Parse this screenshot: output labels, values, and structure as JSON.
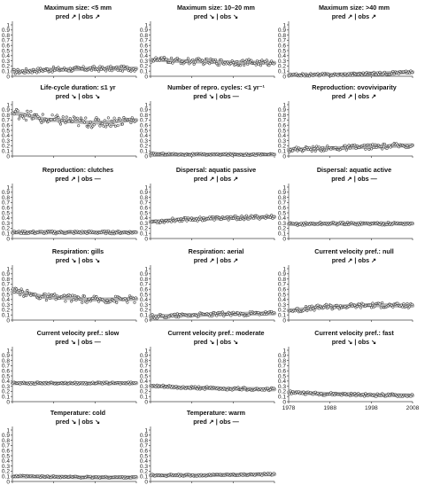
{
  "figure": {
    "y_ticks": [
      "0",
      "0.1",
      "0.2",
      "0.3",
      "0.4",
      "0.5",
      "0.6",
      "0.7",
      "0.8",
      "0.9",
      "1"
    ],
    "x_ticks": [
      "1978",
      "1988",
      "1998",
      "2008"
    ]
  },
  "chart_data": [
    {
      "type": "scatter",
      "title": "Maximum size: <5 mm",
      "subtitle": "pred ↗ | obs ↗",
      "x": [
        1978,
        2008
      ],
      "ylim": [
        0,
        1
      ],
      "trend": {
        "x": [
          1978,
          1988,
          1998,
          2008
        ],
        "y": [
          0.09,
          0.13,
          0.145,
          0.15
        ]
      },
      "spread": 0.05
    },
    {
      "type": "scatter",
      "title": "Maximum size: 10–20 mm",
      "subtitle": "pred ↘ | obs ↘",
      "x": [
        1978,
        2008
      ],
      "ylim": [
        0,
        1
      ],
      "trend": {
        "x": [
          1978,
          1988,
          1998,
          2008
        ],
        "y": [
          0.32,
          0.29,
          0.27,
          0.26
        ]
      },
      "spread": 0.06
    },
    {
      "type": "scatter",
      "title": "Maximum size: >40 mm",
      "subtitle": "pred ↗ | obs ↗",
      "x": [
        1978,
        2008
      ],
      "ylim": [
        0,
        1
      ],
      "trend": {
        "x": [
          1978,
          1988,
          1998,
          2008
        ],
        "y": [
          0.02,
          0.03,
          0.05,
          0.08
        ]
      },
      "spread": 0.03
    },
    {
      "type": "scatter",
      "title": "Life-cycle duration: ≤1 yr",
      "subtitle": "pred ↘ | obs ↘",
      "x": [
        1978,
        2008
      ],
      "ylim": [
        0,
        1
      ],
      "trend": {
        "x": [
          1978,
          1988,
          1998,
          2008
        ],
        "y": [
          0.83,
          0.7,
          0.65,
          0.7
        ]
      },
      "spread": 0.1
    },
    {
      "type": "scatter",
      "title": "Number of repro. cycles: <1 yr⁻¹",
      "subtitle": "pred ↘ | obs —",
      "x": [
        1978,
        2008
      ],
      "ylim": [
        0,
        1
      ],
      "trend": {
        "x": [
          1978,
          1988,
          1998,
          2008
        ],
        "y": [
          0.04,
          0.03,
          0.03,
          0.03
        ]
      },
      "spread": 0.02
    },
    {
      "type": "scatter",
      "title": "Reproduction: ovoviviparity",
      "subtitle": "pred ↗ | obs ↗",
      "x": [
        1978,
        2008
      ],
      "ylim": [
        0,
        1
      ],
      "trend": {
        "x": [
          1978,
          1988,
          1998,
          2008
        ],
        "y": [
          0.13,
          0.15,
          0.18,
          0.21
        ]
      },
      "spread": 0.05
    },
    {
      "type": "scatter",
      "title": "Reproduction: clutches",
      "subtitle": "pred ↗ | obs —",
      "x": [
        1978,
        2008
      ],
      "ylim": [
        0,
        1
      ],
      "trend": {
        "x": [
          1978,
          1988,
          1998,
          2008
        ],
        "y": [
          0.12,
          0.12,
          0.12,
          0.12
        ]
      },
      "spread": 0.03
    },
    {
      "type": "scatter",
      "title": "Dispersal: aquatic passive",
      "subtitle": "pred ↗ | obs ↗",
      "x": [
        1978,
        2008
      ],
      "ylim": [
        0,
        1
      ],
      "trend": {
        "x": [
          1978,
          1988,
          1998,
          2008
        ],
        "y": [
          0.33,
          0.38,
          0.4,
          0.42
        ]
      },
      "spread": 0.04
    },
    {
      "type": "scatter",
      "title": "Dispersal: aquatic active",
      "subtitle": "pred ↗ | obs —",
      "x": [
        1978,
        2008
      ],
      "ylim": [
        0,
        1
      ],
      "trend": {
        "x": [
          1978,
          1988,
          1998,
          2008
        ],
        "y": [
          0.28,
          0.29,
          0.29,
          0.29
        ]
      },
      "spread": 0.03
    },
    {
      "type": "scatter",
      "title": "Respiration: gills",
      "subtitle": "pred ↘ | obs ↘",
      "x": [
        1978,
        2008
      ],
      "ylim": [
        0,
        1
      ],
      "trend": {
        "x": [
          1978,
          1988,
          1998,
          2008
        ],
        "y": [
          0.55,
          0.44,
          0.4,
          0.41
        ]
      },
      "spread": 0.07
    },
    {
      "type": "scatter",
      "title": "Respiration: aerial",
      "subtitle": "pred ↗ | obs ↗",
      "x": [
        1978,
        2008
      ],
      "ylim": [
        0,
        1
      ],
      "trend": {
        "x": [
          1978,
          1988,
          1998,
          2008
        ],
        "y": [
          0.07,
          0.1,
          0.12,
          0.13
        ]
      },
      "spread": 0.04
    },
    {
      "type": "scatter",
      "title": "Current velocity pref.: null",
      "subtitle": "pred ↗ | obs ↗",
      "x": [
        1978,
        2008
      ],
      "ylim": [
        0,
        1
      ],
      "trend": {
        "x": [
          1978,
          1988,
          1998,
          2008
        ],
        "y": [
          0.19,
          0.26,
          0.29,
          0.28
        ]
      },
      "spread": 0.05
    },
    {
      "type": "scatter",
      "title": "Current velocity pref.: slow",
      "subtitle": "pred ↘ | obs —",
      "x": [
        1978,
        2008
      ],
      "ylim": [
        0,
        1
      ],
      "trend": {
        "x": [
          1978,
          1988,
          1998,
          2008
        ],
        "y": [
          0.36,
          0.36,
          0.36,
          0.36
        ]
      },
      "spread": 0.02
    },
    {
      "type": "scatter",
      "title": "Current velocity pref.: moderate",
      "subtitle": "pred ↘ | obs ↘",
      "x": [
        1978,
        2008
      ],
      "ylim": [
        0,
        1
      ],
      "trend": {
        "x": [
          1978,
          1988,
          1998,
          2008
        ],
        "y": [
          0.3,
          0.27,
          0.25,
          0.24
        ]
      },
      "spread": 0.03
    },
    {
      "type": "scatter",
      "title": "Current velocity pref.: fast",
      "subtitle": "pred ↘ | obs ↘",
      "x": [
        1978,
        2008
      ],
      "ylim": [
        0,
        1
      ],
      "trend": {
        "x": [
          1978,
          1988,
          1998,
          2008
        ],
        "y": [
          0.18,
          0.15,
          0.13,
          0.12
        ]
      },
      "spread": 0.03
    },
    {
      "type": "scatter",
      "title": "Temperature: cold",
      "subtitle": "pred ↘ | obs ↘",
      "x": [
        1978,
        2008
      ],
      "ylim": [
        0,
        1
      ],
      "trend": {
        "x": [
          1978,
          1988,
          1998,
          2008
        ],
        "y": [
          0.1,
          0.09,
          0.08,
          0.08
        ]
      },
      "spread": 0.02
    },
    {
      "type": "scatter",
      "title": "Temperature: warm",
      "subtitle": "pred ↗ | obs —",
      "x": [
        1978,
        2008
      ],
      "ylim": [
        0,
        1
      ],
      "trend": {
        "x": [
          1978,
          1988,
          1998,
          2008
        ],
        "y": [
          0.12,
          0.12,
          0.13,
          0.14
        ]
      },
      "spread": 0.02
    }
  ]
}
